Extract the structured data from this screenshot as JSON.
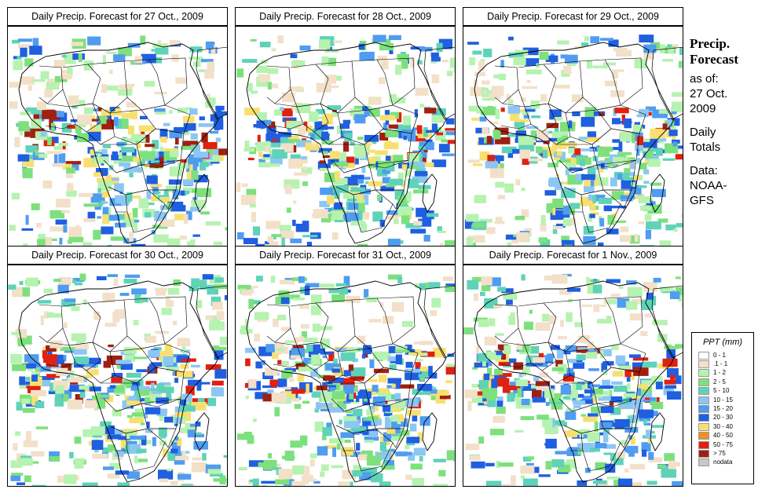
{
  "panels": [
    {
      "title": "Daily Precip. Forecast for  27 Oct., 2009"
    },
    {
      "title": "Daily Precip. Forecast for  28 Oct., 2009"
    },
    {
      "title": "Daily Precip. Forecast for  29 Oct., 2009"
    },
    {
      "title": "Daily Precip. Forecast for  30 Oct., 2009"
    },
    {
      "title": "Daily Precip. Forecast for  31 Oct., 2009"
    },
    {
      "title": "Daily Precip. Forecast for  1 Nov., 2009"
    }
  ],
  "side": {
    "heading1": "Precip.",
    "heading2": "Forecast",
    "asof1": "as of:",
    "asof2": "27 Oct.",
    "asof3": "2009",
    "totals1": "Daily",
    "totals2": "Totals",
    "data1": "Data:",
    "data2": "NOAA-",
    "data3": "GFS"
  },
  "legend": {
    "title": "PPT (mm)",
    "items": [
      {
        "label": "0 - 1",
        "color": "#ffffff"
      },
      {
        "label": ".1 - 1",
        "color": "#f2e0c8"
      },
      {
        "label": "1 - 2",
        "color": "#b6f2b0"
      },
      {
        "label": "2 - 5",
        "color": "#7de07d"
      },
      {
        "label": "5 - 10",
        "color": "#5fd2b8"
      },
      {
        "label": "10 - 15",
        "color": "#8cc6f4"
      },
      {
        "label": "15 - 20",
        "color": "#4f9cf0"
      },
      {
        "label": "20 - 30",
        "color": "#1f5fe0"
      },
      {
        "label": "30 - 40",
        "color": "#f8e070"
      },
      {
        "label": "40 - 50",
        "color": "#f09020"
      },
      {
        "label": "50 - 75",
        "color": "#e02010"
      },
      {
        "label": "> 75",
        "color": "#a02010"
      },
      {
        "label": "nodata",
        "color": "#c8c8c8"
      }
    ]
  }
}
